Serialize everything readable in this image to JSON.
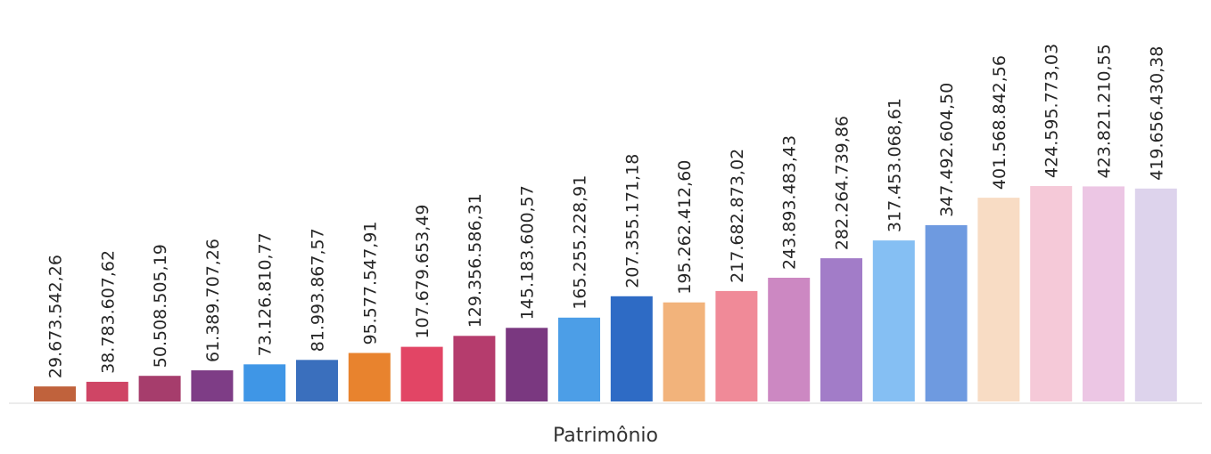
{
  "chart_data": {
    "type": "bar",
    "title": "",
    "xlabel": "Patrimônio",
    "ylabel": "",
    "ylim": [
      0,
      480000000
    ],
    "grid": false,
    "legend": "none",
    "categories": [
      "",
      "",
      "",
      "",
      "",
      "",
      "",
      "",
      "",
      "",
      "",
      "",
      "",
      "",
      "",
      "",
      "",
      "",
      "",
      "",
      "",
      ""
    ],
    "values": [
      29673542.26,
      38783607.62,
      50508505.19,
      61389707.26,
      73126810.77,
      81993867.57,
      95577547.91,
      107679653.49,
      129356586.31,
      145183600.57,
      165255228.91,
      207355171.18,
      195262412.6,
      217682873.02,
      243893483.43,
      282264739.86,
      317453068.61,
      347492604.5,
      401568842.56,
      424595773.03,
      423821210.55,
      419656430.38
    ],
    "labels": [
      "29.673.542,26",
      "38.783.607,62",
      "50.508.505,19",
      "61.389.707,26",
      "73.126.810,77",
      "81.993.867,57",
      "95.577.547,91",
      "107.679.653,49",
      "129.356.586,31",
      "145.183.600,57",
      "165.255.228,91",
      "207.355.171,18",
      "195.262.412,60",
      "217.682.873,02",
      "243.893.483,43",
      "282.264.739,86",
      "317.453.068,61",
      "347.492.604,50",
      "401.568.842,56",
      "424.595.773,03",
      "423.821.210,55",
      "419.656.430,38"
    ],
    "colors": [
      "#c0623c",
      "#cf4565",
      "#a63d6c",
      "#7e3d86",
      "#3f96e6",
      "#3a6fbd",
      "#e8832e",
      "#e24565",
      "#b53c6d",
      "#7a3880",
      "#4c9ee7",
      "#2e6bc5",
      "#f2b37b",
      "#f08a98",
      "#cc88c2",
      "#a27cc8",
      "#85bff3",
      "#6e9ae0",
      "#f8dcc4",
      "#f5c9d8",
      "#ecc6e4",
      "#ddd3ec"
    ]
  }
}
